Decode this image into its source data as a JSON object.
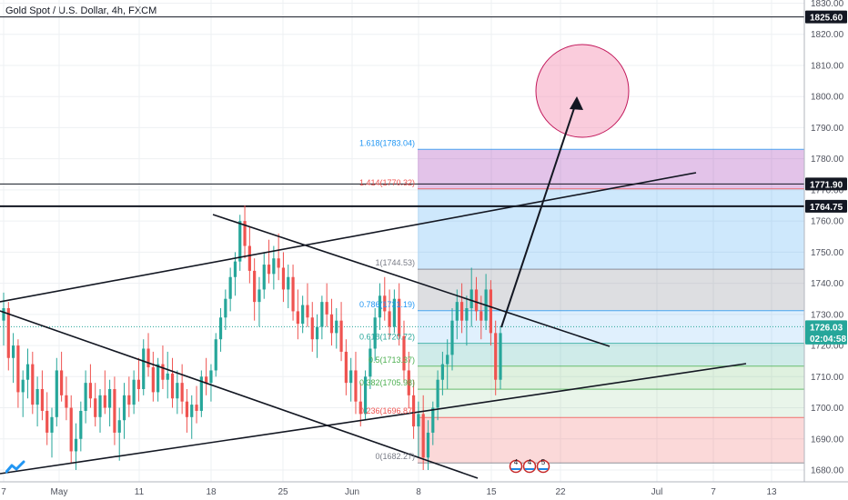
{
  "header": {
    "title": "Gold Spot / U.S. Dollar, 4h, FXCM"
  },
  "colors": {
    "up": "#26a69a",
    "down": "#ef5350",
    "grid": "#eef0f3",
    "axis_text": "#50535e",
    "fib_blue": "#2196f3",
    "fib_red": "#ef5350",
    "fib_green": "#4caf50",
    "fib_gray": "#787b86"
  },
  "chart_data": {
    "type": "candlestick",
    "ylim": [
      1677,
      1832
    ],
    "y_ticks": [
      1680,
      1690,
      1700,
      1710,
      1720,
      1730,
      1740,
      1750,
      1760,
      1770,
      1780,
      1790,
      1800,
      1810,
      1820,
      1830
    ],
    "x_labels": [
      "7",
      "May",
      "11",
      "18",
      "25",
      "Jun",
      "8",
      "15",
      "22",
      "Jul",
      "7",
      "13"
    ],
    "price_badges": [
      {
        "label": "1825.60",
        "value": 1825.6,
        "style": "black"
      },
      {
        "label": "1771.90",
        "value": 1771.9,
        "style": "black"
      },
      {
        "label": "1764.75",
        "value": 1764.75,
        "style": "black"
      },
      {
        "label": "1726.03",
        "value": 1726.03,
        "style": "green"
      },
      {
        "label": "02:04:58",
        "value": 1722.4,
        "style": "green"
      }
    ],
    "horizontal_levels": [
      1825.6,
      1771.9,
      1764.75
    ],
    "fibonacci": [
      {
        "label": "1.618(1783.04)",
        "value": 1783.04,
        "color": "#2196f3"
      },
      {
        "label": "1.414(1770.32)",
        "value": 1770.32,
        "color": "#ef5350"
      },
      {
        "label": "1(1744.53)",
        "value": 1744.53,
        "color": "#787b86"
      },
      {
        "label": "0.786(1731.19)",
        "value": 1731.19,
        "color": "#2196f3"
      },
      {
        "label": "0.618(1720.72)",
        "value": 1720.72,
        "color": "#26a69a"
      },
      {
        "label": "0.5(1713.37)",
        "value": 1713.37,
        "color": "#4caf50"
      },
      {
        "label": "0.382(1705.98)",
        "value": 1705.98,
        "color": "#4caf50"
      },
      {
        "label": "0.236(1696.87)",
        "value": 1696.87,
        "color": "#ef5350"
      },
      {
        "label": "0(1682.27)",
        "value": 1682.27,
        "color": "#787b86"
      }
    ],
    "event_icons": [
      "4",
      "4",
      "5"
    ],
    "candles": [
      [
        1728,
        1737,
        1720,
        1732
      ],
      [
        1732,
        1734,
        1712,
        1716
      ],
      [
        1716,
        1724,
        1708,
        1720
      ],
      [
        1720,
        1722,
        1700,
        1705
      ],
      [
        1705,
        1712,
        1697,
        1709
      ],
      [
        1709,
        1719,
        1703,
        1714
      ],
      [
        1714,
        1718,
        1698,
        1701
      ],
      [
        1701,
        1710,
        1694,
        1706
      ],
      [
        1706,
        1712,
        1696,
        1699
      ],
      [
        1699,
        1705,
        1688,
        1692
      ],
      [
        1692,
        1700,
        1684,
        1697
      ],
      [
        1697,
        1716,
        1694,
        1712
      ],
      [
        1712,
        1718,
        1702,
        1704
      ],
      [
        1704,
        1710,
        1696,
        1700
      ],
      [
        1700,
        1704,
        1682,
        1686
      ],
      [
        1686,
        1695,
        1680,
        1690
      ],
      [
        1690,
        1702,
        1686,
        1699
      ],
      [
        1699,
        1712,
        1695,
        1708
      ],
      [
        1708,
        1714,
        1700,
        1703
      ],
      [
        1703,
        1708,
        1694,
        1697
      ],
      [
        1697,
        1706,
        1692,
        1704
      ],
      [
        1704,
        1712,
        1698,
        1700
      ],
      [
        1700,
        1709,
        1694,
        1706
      ],
      [
        1706,
        1710,
        1688,
        1692
      ],
      [
        1692,
        1700,
        1683,
        1696
      ],
      [
        1696,
        1708,
        1690,
        1704
      ],
      [
        1704,
        1710,
        1697,
        1701
      ],
      [
        1701,
        1712,
        1698,
        1709
      ],
      [
        1709,
        1716,
        1702,
        1706
      ],
      [
        1706,
        1722,
        1704,
        1719
      ],
      [
        1719,
        1724,
        1710,
        1713
      ],
      [
        1713,
        1718,
        1702,
        1705
      ],
      [
        1705,
        1716,
        1702,
        1714
      ],
      [
        1714,
        1720,
        1706,
        1709
      ],
      [
        1709,
        1718,
        1703,
        1711
      ],
      [
        1711,
        1716,
        1700,
        1703
      ],
      [
        1703,
        1712,
        1698,
        1708
      ],
      [
        1708,
        1714,
        1698,
        1702
      ],
      [
        1702,
        1706,
        1692,
        1697
      ],
      [
        1697,
        1704,
        1690,
        1701
      ],
      [
        1701,
        1707,
        1695,
        1699
      ],
      [
        1699,
        1712,
        1697,
        1710
      ],
      [
        1710,
        1716,
        1704,
        1708
      ],
      [
        1708,
        1714,
        1702,
        1712
      ],
      [
        1712,
        1724,
        1710,
        1722
      ],
      [
        1722,
        1732,
        1718,
        1729
      ],
      [
        1729,
        1738,
        1725,
        1735
      ],
      [
        1735,
        1745,
        1731,
        1742
      ],
      [
        1742,
        1750,
        1736,
        1747
      ],
      [
        1747,
        1762,
        1744,
        1760
      ],
      [
        1760,
        1765,
        1748,
        1752
      ],
      [
        1752,
        1758,
        1740,
        1744
      ],
      [
        1744,
        1748,
        1728,
        1734
      ],
      [
        1734,
        1742,
        1726,
        1738
      ],
      [
        1738,
        1750,
        1735,
        1746
      ],
      [
        1746,
        1754,
        1740,
        1743
      ],
      [
        1743,
        1752,
        1738,
        1748
      ],
      [
        1748,
        1756,
        1741,
        1745
      ],
      [
        1745,
        1750,
        1734,
        1738
      ],
      [
        1738,
        1746,
        1732,
        1742
      ],
      [
        1742,
        1746,
        1728,
        1731
      ],
      [
        1731,
        1738,
        1722,
        1727
      ],
      [
        1727,
        1736,
        1724,
        1733
      ],
      [
        1733,
        1740,
        1726,
        1729
      ],
      [
        1729,
        1734,
        1718,
        1722
      ],
      [
        1722,
        1730,
        1716,
        1726
      ],
      [
        1726,
        1736,
        1722,
        1734
      ],
      [
        1734,
        1740,
        1726,
        1730
      ],
      [
        1730,
        1735,
        1720,
        1724
      ],
      [
        1724,
        1732,
        1719,
        1728
      ],
      [
        1728,
        1734,
        1715,
        1718
      ],
      [
        1718,
        1722,
        1704,
        1708
      ],
      [
        1708,
        1716,
        1702,
        1712
      ],
      [
        1712,
        1718,
        1698,
        1702
      ],
      [
        1702,
        1708,
        1694,
        1698
      ],
      [
        1698,
        1712,
        1696,
        1710
      ],
      [
        1710,
        1722,
        1706,
        1719
      ],
      [
        1719,
        1732,
        1715,
        1729
      ],
      [
        1729,
        1740,
        1725,
        1736
      ],
      [
        1736,
        1742,
        1728,
        1731
      ],
      [
        1731,
        1738,
        1722,
        1726
      ],
      [
        1726,
        1738,
        1724,
        1735
      ],
      [
        1735,
        1740,
        1720,
        1723
      ],
      [
        1723,
        1728,
        1708,
        1712
      ],
      [
        1712,
        1718,
        1700,
        1704
      ],
      [
        1704,
        1709,
        1690,
        1694
      ],
      [
        1694,
        1702,
        1684,
        1698
      ],
      [
        1698,
        1704,
        1680,
        1684
      ],
      [
        1684,
        1696,
        1680,
        1692
      ],
      [
        1692,
        1702,
        1688,
        1700
      ],
      [
        1700,
        1712,
        1696,
        1709
      ],
      [
        1709,
        1718,
        1704,
        1714
      ],
      [
        1714,
        1722,
        1706,
        1717
      ],
      [
        1717,
        1732,
        1712,
        1728
      ],
      [
        1728,
        1738,
        1722,
        1734
      ],
      [
        1734,
        1740,
        1724,
        1728
      ],
      [
        1728,
        1736,
        1720,
        1732
      ],
      [
        1732,
        1745,
        1726,
        1738
      ],
      [
        1738,
        1742,
        1728,
        1731
      ],
      [
        1731,
        1736,
        1722,
        1728
      ],
      [
        1728,
        1743,
        1725,
        1738
      ],
      [
        1738,
        1741,
        1720,
        1724
      ],
      [
        1724,
        1728,
        1704,
        1709
      ],
      [
        1709,
        1726,
        1706,
        1724
      ]
    ]
  }
}
